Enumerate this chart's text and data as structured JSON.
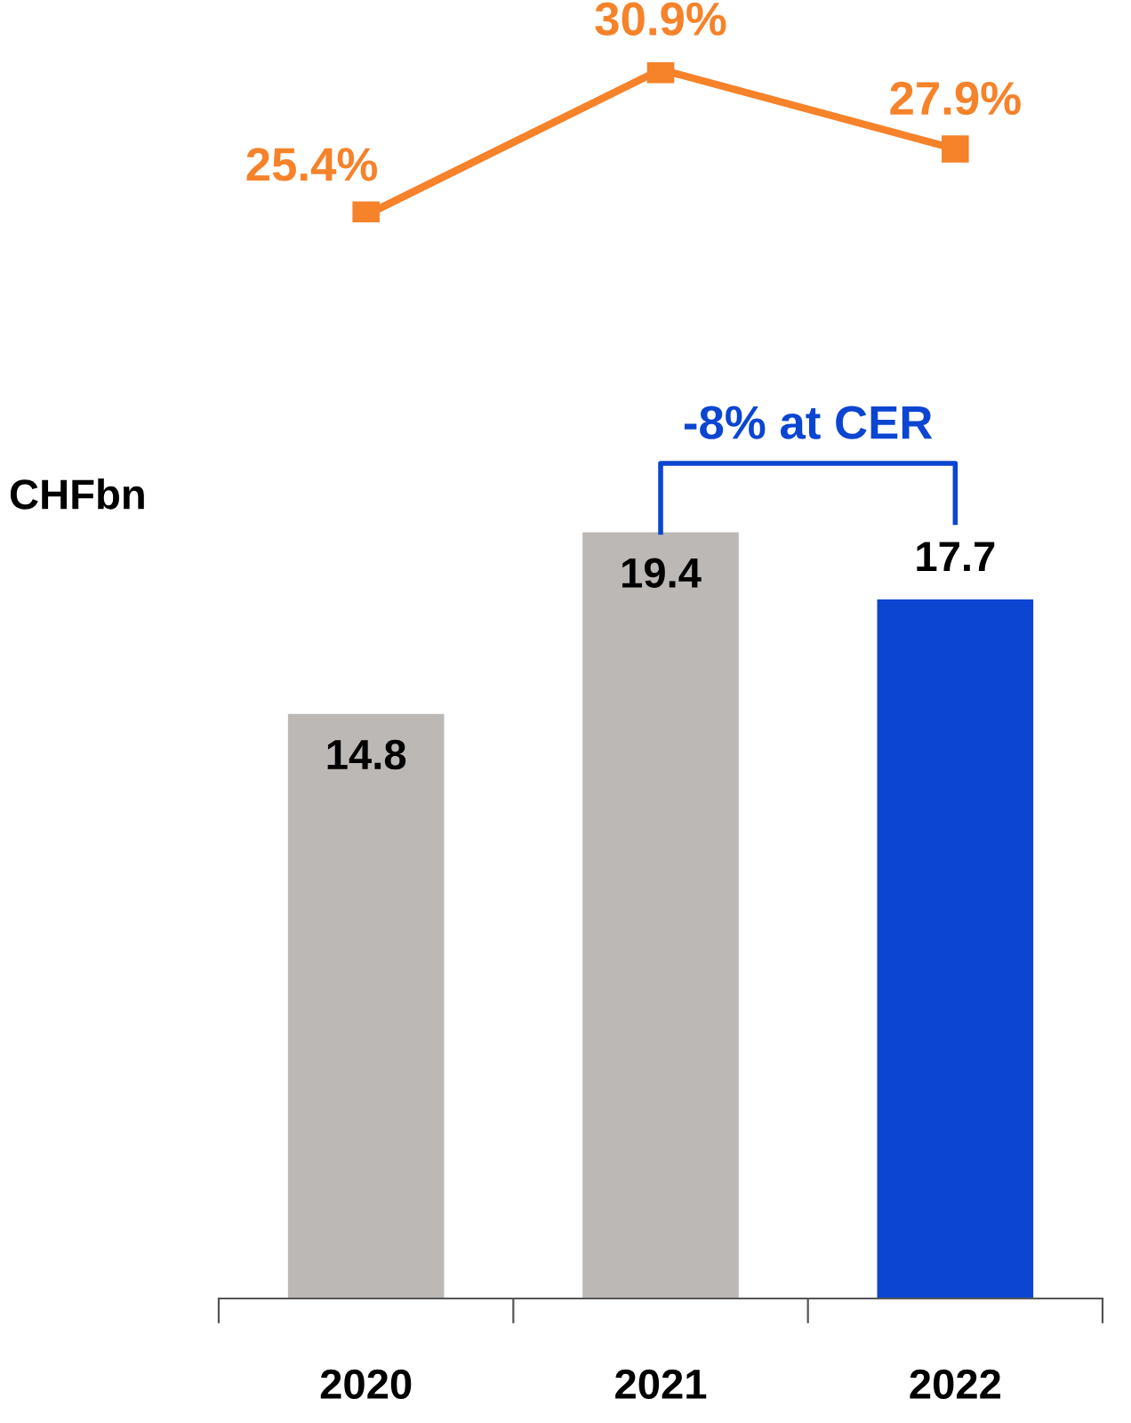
{
  "chart_data": [
    {
      "type": "line",
      "categories": [
        "2020",
        "2021",
        "2022"
      ],
      "tick_labels": false,
      "series": [
        {
          "color": "#f6822a",
          "values": [
            25.4,
            30.9,
            27.9
          ],
          "value_labels": [
            "25.4%",
            "30.9%",
            "27.9%"
          ]
        }
      ],
      "marker": "square",
      "line_style": "solid",
      "grid": false,
      "legend": false
    },
    {
      "type": "bar",
      "ylabel": "CHFbn",
      "categories": [
        "2020",
        "2021",
        "2022"
      ],
      "values": [
        14.8,
        19.4,
        17.7
      ],
      "colors": [
        "#bcb8b6",
        "#bcb8b6",
        "#0b45d1"
      ],
      "data_labels": true,
      "grid": false,
      "legend": false,
      "annotations": [
        "-8% at CER"
      ]
    }
  ]
}
